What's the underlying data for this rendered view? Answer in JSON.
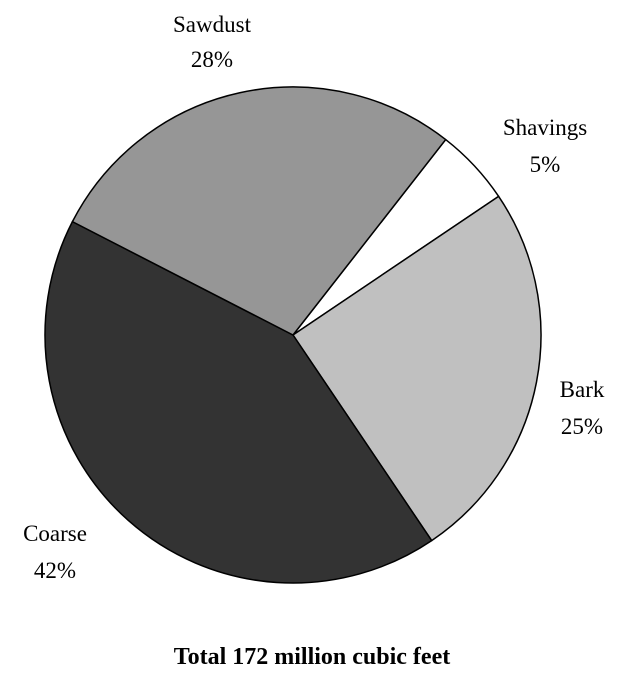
{
  "chart_data": {
    "type": "pie",
    "caption": "Total 172 million cubic feet",
    "slices": [
      {
        "name": "Shavings",
        "percent_label": "5%",
        "value": 5,
        "color": "#ffffff"
      },
      {
        "name": "Bark",
        "percent_label": "25%",
        "value": 25,
        "color": "#c0c0c0"
      },
      {
        "name": "Coarse",
        "percent_label": "42%",
        "value": 42,
        "color": "#333333"
      },
      {
        "name": "Sawdust",
        "percent_label": "28%",
        "value": 28,
        "color": "#969696"
      }
    ]
  }
}
